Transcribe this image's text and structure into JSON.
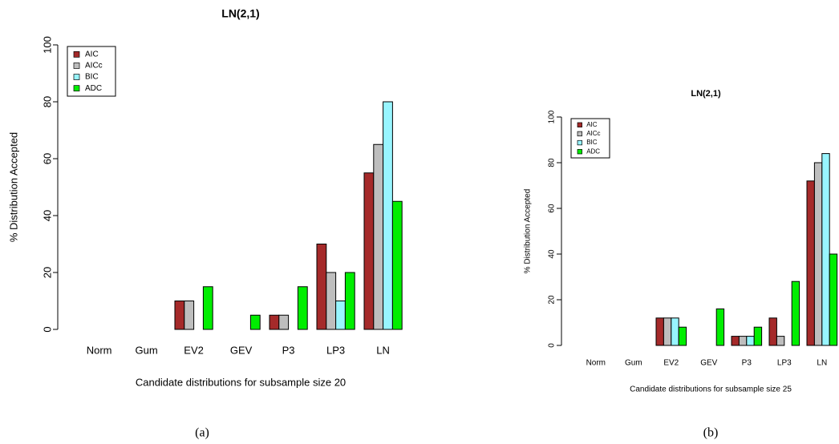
{
  "chart_data": [
    {
      "type": "bar",
      "title": "LN(2,1)",
      "x_label": "Candidate distributions for subsample size 20",
      "y_label": "% Distribution Accepted",
      "caption": "(a)",
      "categories": [
        "Norm",
        "Gum",
        "EV2",
        "GEV",
        "P3",
        "LP3",
        "LN"
      ],
      "series": [
        {
          "name": "AIC",
          "color": "#a52a2a",
          "values": [
            0,
            0,
            10,
            0,
            5,
            30,
            55
          ]
        },
        {
          "name": "AICc",
          "color": "#bebebe",
          "values": [
            0,
            0,
            10,
            0,
            5,
            20,
            65
          ]
        },
        {
          "name": "BIC",
          "color": "#98f5ff",
          "values": [
            0,
            0,
            0,
            0,
            0,
            10,
            80
          ]
        },
        {
          "name": "ADC",
          "color": "#00ee00",
          "values": [
            0,
            0,
            15,
            5,
            15,
            20,
            45
          ]
        }
      ],
      "ylim": [
        0,
        100
      ],
      "yticks": [
        0,
        20,
        40,
        60,
        80,
        100
      ],
      "legend": "top-left"
    },
    {
      "type": "bar",
      "title": "LN(2,1)",
      "x_label": "Candidate distributions for subsample size 25",
      "y_label": "% Distribution Accepted",
      "caption": "(b)",
      "categories": [
        "Norm",
        "Gum",
        "EV2",
        "GEV",
        "P3",
        "LP3",
        "LN"
      ],
      "series": [
        {
          "name": "AIC",
          "color": "#a52a2a",
          "values": [
            0,
            0,
            12,
            0,
            4,
            12,
            72
          ]
        },
        {
          "name": "AICc",
          "color": "#bebebe",
          "values": [
            0,
            0,
            12,
            0,
            4,
            4,
            80
          ]
        },
        {
          "name": "BIC",
          "color": "#98f5ff",
          "values": [
            0,
            0,
            12,
            0,
            4,
            0,
            84
          ]
        },
        {
          "name": "ADC",
          "color": "#00ee00",
          "values": [
            0,
            0,
            8,
            16,
            8,
            28,
            40
          ]
        }
      ],
      "ylim": [
        0,
        100
      ],
      "yticks": [
        0,
        20,
        40,
        60,
        80,
        100
      ],
      "legend": "top-left"
    }
  ]
}
